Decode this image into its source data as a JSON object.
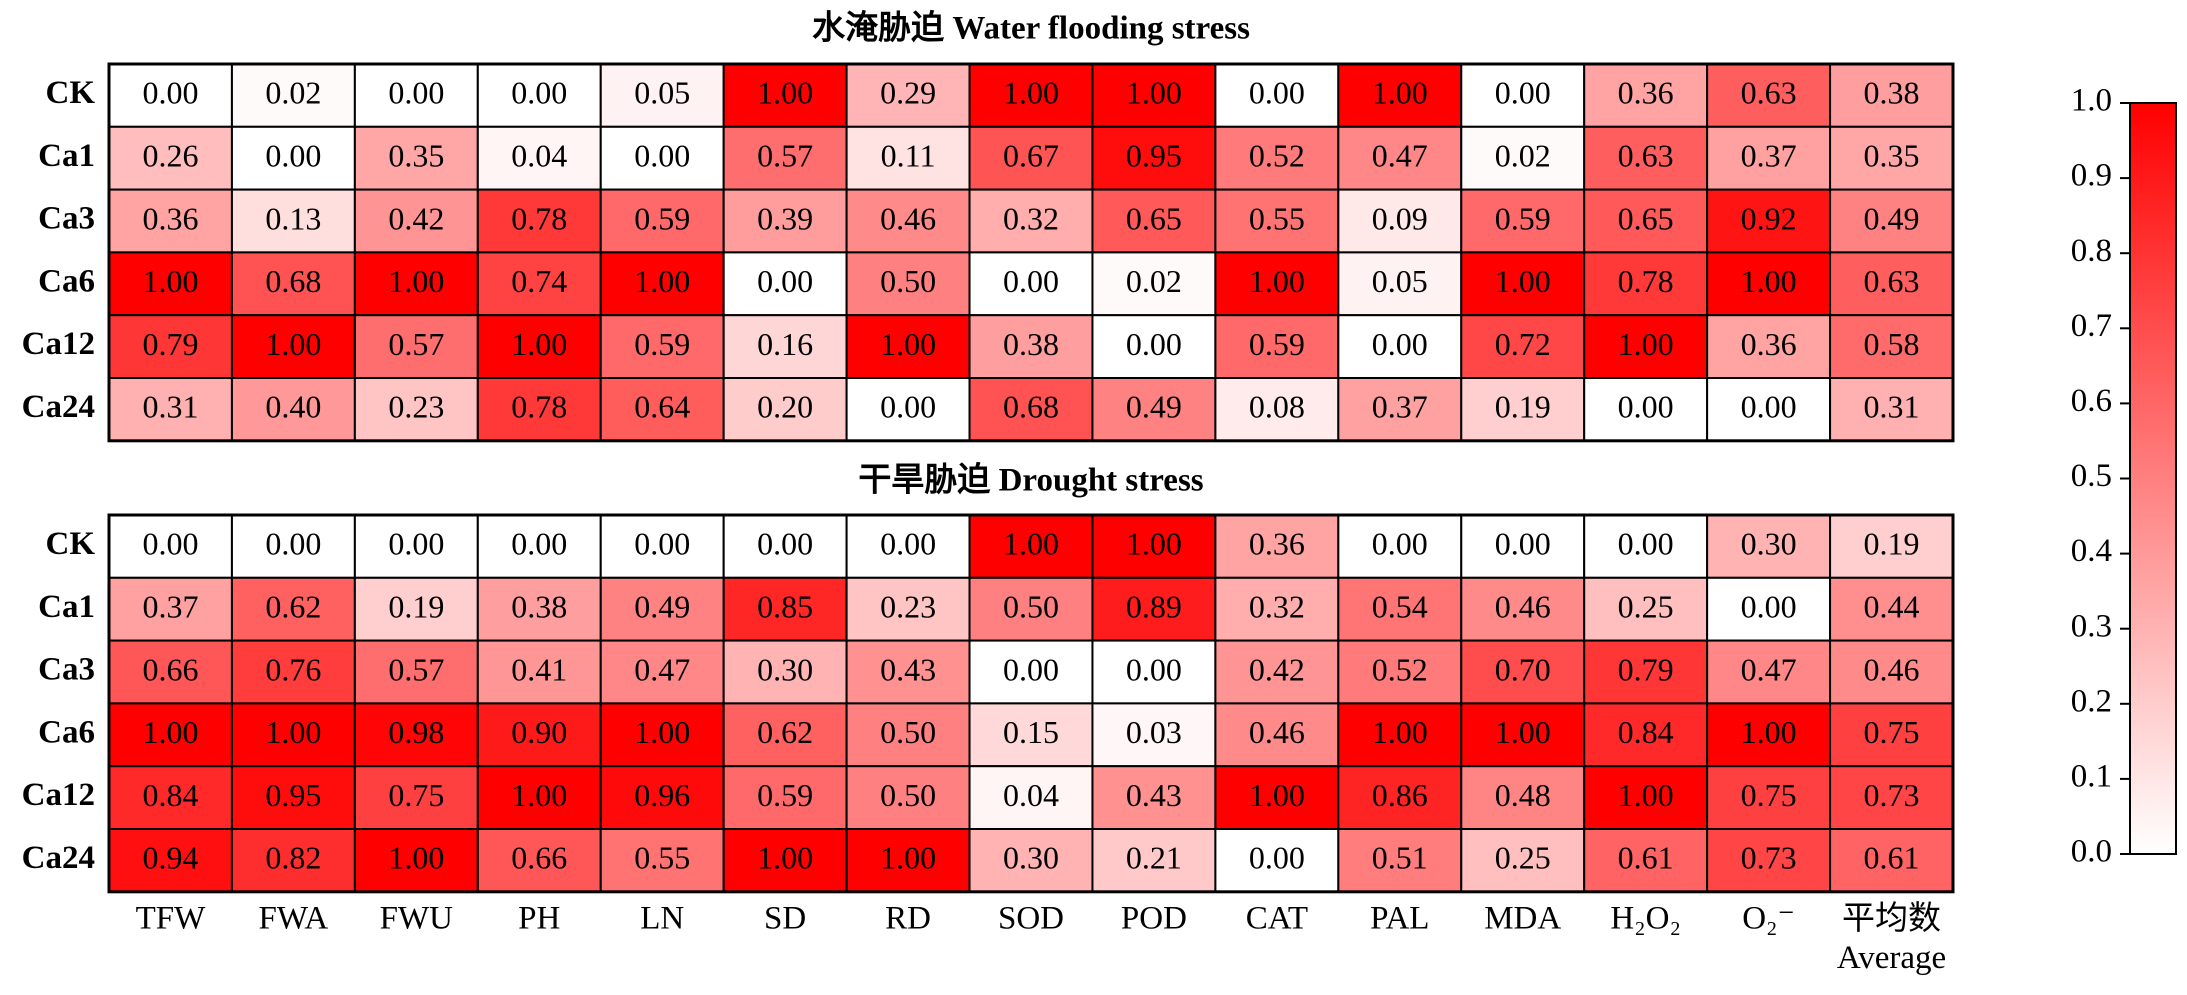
{
  "chart_data": [
    {
      "type": "heatmap",
      "title": "水淹胁迫 Water flooding stress",
      "rows": [
        "CK",
        "Ca1",
        "Ca3",
        "Ca6",
        "Ca12",
        "Ca24"
      ],
      "values": [
        [
          0,
          0.02,
          0,
          0,
          0.05,
          1,
          0.29,
          1,
          1,
          0,
          1,
          0,
          0.36,
          0.63,
          0.38
        ],
        [
          0.26,
          0,
          0.35,
          0.04,
          0,
          0.57,
          0.11,
          0.67,
          0.95,
          0.52,
          0.47,
          0.02,
          0.63,
          0.37,
          0.35
        ],
        [
          0.36,
          0.13,
          0.42,
          0.78,
          0.59,
          0.39,
          0.46,
          0.32,
          0.65,
          0.55,
          0.09,
          0.59,
          0.65,
          0.92,
          0.49
        ],
        [
          1,
          0.68,
          1,
          0.74,
          1,
          0,
          0.5,
          0,
          0.02,
          1,
          0.05,
          1,
          0.78,
          1,
          0.63
        ],
        [
          0.79,
          1,
          0.57,
          1,
          0.59,
          0.16,
          1,
          0.38,
          0,
          0.59,
          0,
          0.72,
          1,
          0.36,
          0.58
        ],
        [
          0.31,
          0.4,
          0.23,
          0.78,
          0.64,
          0.2,
          0,
          0.68,
          0.49,
          0.08,
          0.37,
          0.19,
          0,
          0,
          0.31
        ]
      ],
      "value_labels": [
        [
          "0.00",
          "0.02",
          "0.00",
          "0.00",
          "0.05",
          "1.00",
          "0.29",
          "1.00",
          "1.00",
          "0.00",
          "1.00",
          "0.00",
          "0.36",
          "0.63",
          "0.38"
        ],
        [
          "0.26",
          "0.00",
          "0.35",
          "0.04",
          "0.00",
          "0.57",
          "0.11",
          "0.67",
          "0.95",
          "0.52",
          "0.47",
          "0.02",
          "0.63",
          "0.37",
          "0.35"
        ],
        [
          "0.36",
          "0.13",
          "0.42",
          "0.78",
          "0.59",
          "0.39",
          "0.46",
          "0.32",
          "0.65",
          "0.55",
          "0.09",
          "0.59",
          "0.65",
          "0.92",
          "0.49"
        ],
        [
          "1.00",
          "0.68",
          "1.00",
          "0.74",
          "1.00",
          "0.00",
          "0.50",
          "0.00",
          "0.02",
          "1.00",
          "0.05",
          "1.00",
          "0.78",
          "1.00",
          "0.63"
        ],
        [
          "0.79",
          "1.00",
          "0.57",
          "1.00",
          "0.59",
          "0.16",
          "1.00",
          "0.38",
          "0.00",
          "0.59",
          "0.00",
          "0.72",
          "1.00",
          "0.36",
          "0.58"
        ],
        [
          "0.31",
          "0.40",
          "0.23",
          "0.78",
          "0.64",
          "0.20",
          "0.00",
          "0.68",
          "0.49",
          "0.08",
          "0.37",
          "0.19",
          "0.00",
          "0.00",
          "0.31"
        ]
      ],
      "zlim": [
        0,
        1
      ],
      "colors": [
        "#ffffff",
        "#ff0000"
      ],
      "zticks": [
        {
          "value": 0,
          "label": "0.0"
        },
        {
          "value": 0.1,
          "label": "0.1"
        },
        {
          "value": 0.2,
          "label": "0.2"
        },
        {
          "value": 0.3,
          "label": "0.3"
        },
        {
          "value": 0.4,
          "label": "0.4"
        },
        {
          "value": 0.5,
          "label": "0.5"
        },
        {
          "value": 0.6,
          "label": "0.6"
        },
        {
          "value": 0.7,
          "label": "0.7"
        },
        {
          "value": 0.8,
          "label": "0.8"
        },
        {
          "value": 0.9,
          "label": "0.9"
        },
        {
          "value": 1,
          "label": "1.0"
        }
      ]
    },
    {
      "type": "heatmap",
      "title": "干旱胁迫 Drought stress",
      "rows": [
        "CK",
        "Ca1",
        "Ca3",
        "Ca6",
        "Ca12",
        "Ca24"
      ],
      "columns": [
        "TFW",
        "FWA",
        "FWU",
        "PH",
        "LN",
        "SD",
        "RD",
        "SOD",
        "POD",
        "CAT",
        "PAL",
        "MDA",
        "H₂O₂",
        "O₂⁻",
        "平均数\nAverage"
      ],
      "values": [
        [
          0,
          0,
          0,
          0,
          0,
          0,
          0,
          1,
          1,
          0.36,
          0,
          0,
          0,
          0.3,
          0.19
        ],
        [
          0.37,
          0.62,
          0.19,
          0.38,
          0.49,
          0.85,
          0.23,
          0.5,
          0.89,
          0.32,
          0.54,
          0.46,
          0.25,
          0,
          0.44
        ],
        [
          0.66,
          0.76,
          0.57,
          0.41,
          0.47,
          0.3,
          0.43,
          0,
          0,
          0.42,
          0.52,
          0.7,
          0.79,
          0.47,
          0.46
        ],
        [
          1,
          1,
          0.98,
          0.9,
          1,
          0.62,
          0.5,
          0.15,
          0.03,
          0.46,
          1,
          1,
          0.84,
          1,
          0.75
        ],
        [
          0.84,
          0.95,
          0.75,
          1,
          0.96,
          0.59,
          0.5,
          0.04,
          0.43,
          1,
          0.86,
          0.48,
          1,
          0.75,
          0.73
        ],
        [
          0.94,
          0.82,
          1,
          0.66,
          0.55,
          1,
          1,
          0.3,
          0.21,
          0,
          0.51,
          0.25,
          0.61,
          0.73,
          0.61
        ]
      ],
      "value_labels": [
        [
          "0.00",
          "0.00",
          "0.00",
          "0.00",
          "0.00",
          "0.00",
          "0.00",
          "1.00",
          "1.00",
          "0.36",
          "0.00",
          "0.00",
          "0.00",
          "0.30",
          "0.19"
        ],
        [
          "0.37",
          "0.62",
          "0.19",
          "0.38",
          "0.49",
          "0.85",
          "0.23",
          "0.50",
          "0.89",
          "0.32",
          "0.54",
          "0.46",
          "0.25",
          "0.00",
          "0.44"
        ],
        [
          "0.66",
          "0.76",
          "0.57",
          "0.41",
          "0.47",
          "0.30",
          "0.43",
          "0.00",
          "0.00",
          "0.42",
          "0.52",
          "0.70",
          "0.79",
          "0.47",
          "0.46"
        ],
        [
          "1.00",
          "1.00",
          "0.98",
          "0.90",
          "1.00",
          "0.62",
          "0.50",
          "0.15",
          "0.03",
          "0.46",
          "1.00",
          "1.00",
          "0.84",
          "1.00",
          "0.75"
        ],
        [
          "0.84",
          "0.95",
          "0.75",
          "1.00",
          "0.96",
          "0.59",
          "0.50",
          "0.04",
          "0.43",
          "1.00",
          "0.86",
          "0.48",
          "1.00",
          "0.75",
          "0.73"
        ],
        [
          "0.94",
          "0.82",
          "1.00",
          "0.66",
          "0.55",
          "1.00",
          "1.00",
          "0.30",
          "0.21",
          "0.00",
          "0.51",
          "0.25",
          "0.61",
          "0.73",
          "0.61"
        ]
      ],
      "zlim": [
        0,
        1
      ],
      "colors": [
        "#ffffff",
        "#ff0000"
      ]
    }
  ]
}
